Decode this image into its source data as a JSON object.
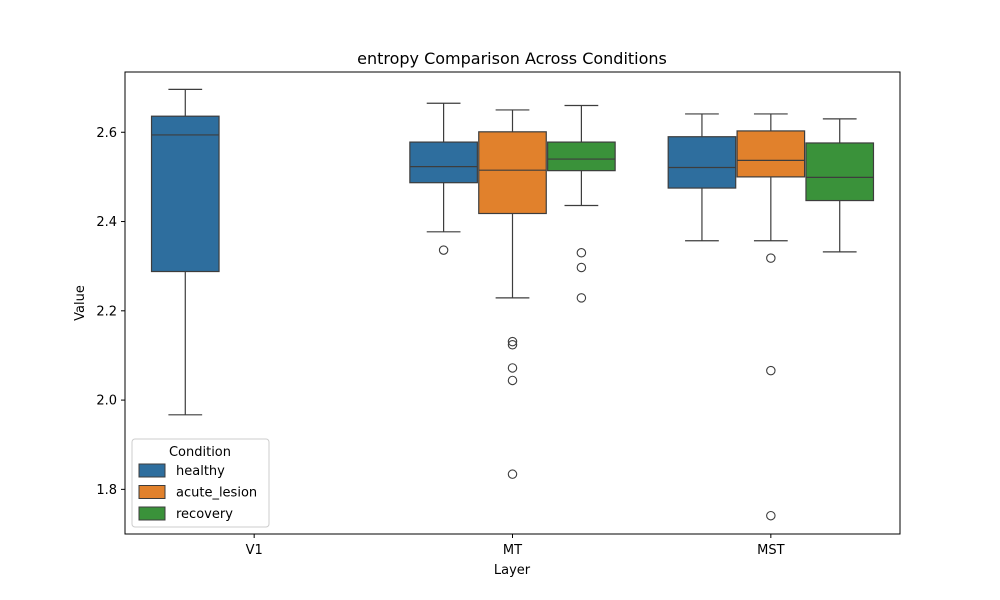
{
  "chart_data": {
    "type": "boxplot",
    "title": "entropy Comparison Across Conditions",
    "xlabel": "Layer",
    "ylabel": "Value",
    "categories": [
      "V1",
      "MT",
      "MST"
    ],
    "ylim": [
      1.7,
      2.735
    ],
    "yticks": [
      1.8,
      2.0,
      2.2,
      2.4,
      2.6
    ],
    "ytick_labels": [
      "1.8",
      "2.0",
      "2.2",
      "2.4",
      "2.6"
    ],
    "grid": false,
    "legend": {
      "title": "Condition",
      "placement": "lower-left"
    },
    "series": [
      {
        "name": "healthy",
        "color": "#2e6e9e",
        "boxes": [
          {
            "category": "V1",
            "whislo": 1.967,
            "q1": 2.288,
            "med": 2.594,
            "q3": 2.636,
            "whishi": 2.696,
            "fliers": []
          },
          {
            "category": "MT",
            "whislo": 2.377,
            "q1": 2.487,
            "med": 2.523,
            "q3": 2.578,
            "whishi": 2.665,
            "fliers": [
              2.336
            ]
          },
          {
            "category": "MST",
            "whislo": 2.357,
            "q1": 2.475,
            "med": 2.521,
            "q3": 2.59,
            "whishi": 2.641,
            "fliers": []
          }
        ]
      },
      {
        "name": "acute_lesion",
        "color": "#e1812c",
        "boxes": [
          {
            "category": "MT",
            "whislo": 2.229,
            "q1": 2.418,
            "med": 2.515,
            "q3": 2.601,
            "whishi": 2.65,
            "fliers": [
              2.131,
              2.124,
              2.072,
              2.044,
              1.834
            ]
          },
          {
            "category": "MST",
            "whislo": 2.357,
            "q1": 2.5,
            "med": 2.537,
            "q3": 2.603,
            "whishi": 2.641,
            "fliers": [
              2.318,
              2.066,
              1.741
            ]
          }
        ]
      },
      {
        "name": "recovery",
        "color": "#3a923a",
        "boxes": [
          {
            "category": "MT",
            "whislo": 2.436,
            "q1": 2.514,
            "med": 2.54,
            "q3": 2.578,
            "whishi": 2.66,
            "fliers": [
              2.33,
              2.297,
              2.229
            ]
          },
          {
            "category": "MST",
            "whislo": 2.332,
            "q1": 2.447,
            "med": 2.499,
            "q3": 2.576,
            "whishi": 2.63,
            "fliers": []
          }
        ]
      }
    ]
  }
}
